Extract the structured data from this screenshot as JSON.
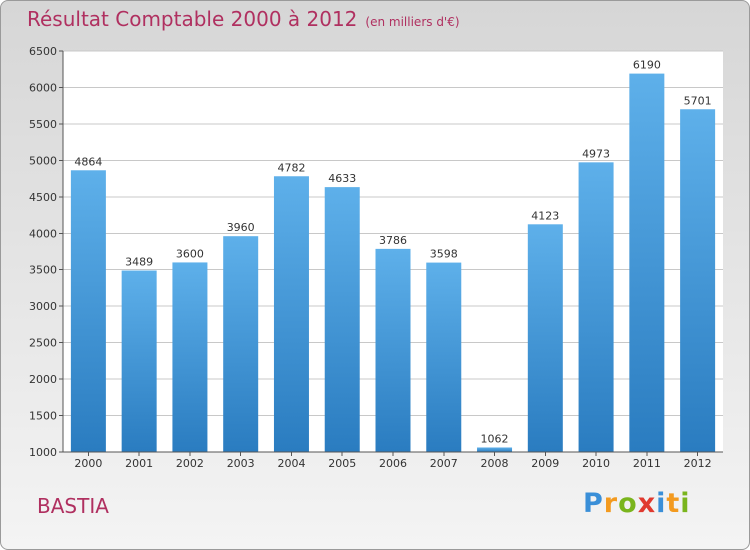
{
  "title": "Résultat Comptable 2000 à 2012",
  "subtitle": "(en milliers d'€)",
  "city": "BASTIA",
  "logo": {
    "letters": [
      "P",
      "r",
      "o",
      "x",
      "i",
      "t",
      "i"
    ],
    "colors": [
      "#3a8fd8",
      "#f39a1f",
      "#7ab51d",
      "#e03a2f",
      "#3a8fd8",
      "#f39a1f",
      "#7ab51d"
    ]
  },
  "colors": {
    "bar_top": "#5eb0ea",
    "bar_bottom": "#2a7cc0",
    "title": "#b03060",
    "plot_bg": "#ffffff",
    "grid": "#c8c8c8"
  },
  "chart_data": {
    "type": "bar",
    "title": "Résultat Comptable 2000 à 2012",
    "subtitle": "(en milliers d'€)",
    "categories": [
      "2000",
      "2001",
      "2002",
      "2003",
      "2004",
      "2005",
      "2006",
      "2007",
      "2008",
      "2009",
      "2010",
      "2011",
      "2012"
    ],
    "values": [
      4864,
      3489,
      3600,
      3960,
      4782,
      4633,
      3786,
      3598,
      1062,
      4123,
      4973,
      6190,
      5701
    ],
    "xlabel": "",
    "ylabel": "",
    "ylim": [
      1000,
      6500
    ],
    "yticks": [
      1000,
      1500,
      2000,
      2500,
      3000,
      3500,
      4000,
      4500,
      5000,
      5500,
      6000,
      6500
    ],
    "grid": true,
    "data_labels": true
  }
}
